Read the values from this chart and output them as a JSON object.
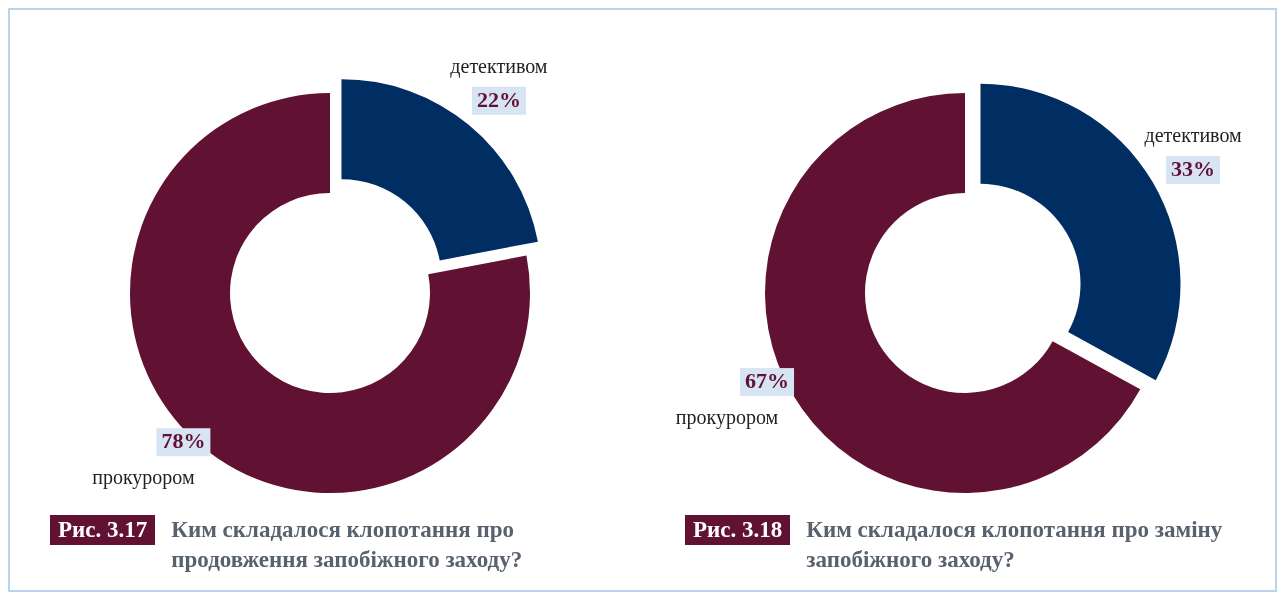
{
  "chart_data": [
    {
      "type": "donut",
      "title": "Ким складалося клопотання про продовження запобіжного заходу?",
      "subtitle": "Рис. 3.17",
      "categories": [
        "детективом",
        "прокурором"
      ],
      "values": [
        22,
        78
      ],
      "value_labels": [
        "22%",
        "78%"
      ],
      "colors": [
        "#002d62",
        "#611232"
      ],
      "legend": false
    },
    {
      "type": "donut",
      "title": "Ким складалося клопотання про заміну запобіжного заходу?",
      "subtitle": "Рис. 3.18",
      "categories": [
        "детективом",
        "прокурором"
      ],
      "values": [
        33,
        67
      ],
      "value_labels": [
        "33%",
        "67%"
      ],
      "colors": [
        "#002d62",
        "#611232"
      ],
      "legend": false
    }
  ]
}
